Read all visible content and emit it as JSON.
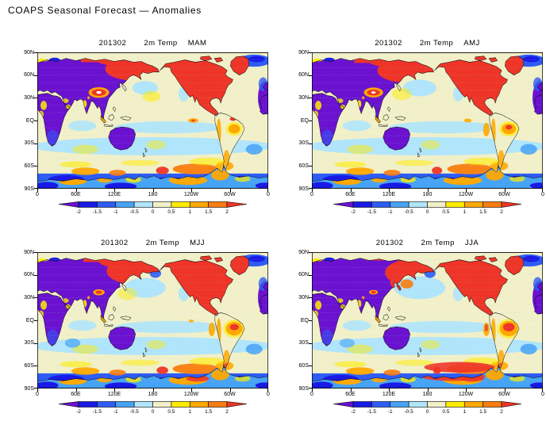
{
  "page": {
    "title": "COAPS Seasonal Forecast — Anomalies"
  },
  "colors": {
    "background": "#ffffff",
    "ocean_base": "#F2F0C8",
    "gridline": "#9FD4EE",
    "coastline": "#0a0a0a",
    "frame": "#000000"
  },
  "chart_data": {
    "type": "heatmap",
    "subtype": "filled-contour global anomaly maps, 2x2 seasonal panels",
    "shared": {
      "init_date": "201302",
      "variable": "2m Temp",
      "units": "degC anomaly",
      "projection": "latlon, Pacific-centered, lon 0E..360E",
      "x_ticks": [
        "0",
        "60E",
        "120E",
        "180",
        "120W",
        "60W",
        "0"
      ],
      "y_ticks": [
        "90N",
        "60N",
        "30N",
        "EQ",
        "30S",
        "60S",
        "90S"
      ],
      "lon_range": [
        0,
        360
      ],
      "lat_range": [
        -90,
        90
      ],
      "grid": "light-blue dotted horizontal latitude lines every 10 deg",
      "colorbar": {
        "tick_labels": [
          "-2",
          "-1.5",
          "-1",
          "-0.5",
          "0",
          "0.5",
          "1",
          "1.5",
          "2"
        ],
        "levels": [
          -2,
          -1.5,
          -1,
          -0.5,
          0,
          0.5,
          1,
          1.5,
          2
        ],
        "below_color": "#6A12D0",
        "segment_colors": [
          "#1A1AE6",
          "#2E5CF5",
          "#47A3F5",
          "#B0E5FB",
          "#F2F0C8",
          "#FFEC00",
          "#FFA800",
          "#F97C0E"
        ],
        "above_color": "#EE3528",
        "arrow_ends": true,
        "position": "below each map, centered"
      }
    },
    "panels": [
      {
        "title_date": "201302",
        "title_var": "2m Temp",
        "season": "MAM",
        "warm_regions": [
          "North America (strong, > +2)",
          "northern and eastern Siberia",
          "central-Asia plateau hotspot (local max, white core)",
          "Antarctic coastal seas (patches > +1.5)"
        ],
        "cold_regions": [
          "Europe and western Russia (< -2)",
          "central and southern Asia (< -2)",
          "northern Africa",
          "Australia (< -2)",
          "subtropical North Atlantic",
          "high-latitude Southern Ocean"
        ],
        "near_zero_regions": [
          "tropical Pacific and Atlantic (0 to +0.5)"
        ]
      },
      {
        "title_date": "201302",
        "title_var": "2m Temp",
        "season": "AMJ",
        "warm_regions": [
          "North America (strong, > +2)",
          "northern and eastern Siberia",
          "central-Asia plateau hotspot",
          "coastal Peru warm patch",
          "Antarctic coastal seas"
        ],
        "cold_regions": [
          "Europe and western Russia (< -2)",
          "central and southern Asia (< -2)",
          "Australia (< -2)",
          "subtropical North Atlantic",
          "mid-latitude North Pacific cool patch",
          "high-latitude Southern Ocean"
        ],
        "near_zero_regions": [
          "tropical oceans (0 to +0.5)"
        ]
      },
      {
        "title_date": "201302",
        "title_var": "2m Temp",
        "season": "MJJ",
        "warm_regions": [
          "North America (strong, > +2)",
          "northeastern Asia / Siberia (band thickens)",
          "central Brazil warm blob (+1.5 to +2)",
          "Antarctic coastal seas"
        ],
        "cold_regions": [
          "Europe and central Asia (< -2)",
          "Australia (< -2)",
          "growing mid-latitude North Pacific cool patch",
          "Bering Sea patch",
          "high-latitude Southern Ocean"
        ],
        "near_zero_regions": [
          "tropical oceans (0 to +0.5)"
        ]
      },
      {
        "title_date": "201302",
        "title_var": "2m Temp",
        "season": "JJA",
        "warm_regions": [
          "North America (strong, > +2)",
          "northeastern Siberia and sea east of Japan",
          "central Brazil strong warm blob (> +2)",
          "red Antarctic coastal band (> +2)"
        ],
        "cold_regions": [
          "Europe and central/southern Asia (< -2, largest extent)",
          "Australia (< -2)",
          "large mid-latitude North Pacific cool pool",
          "high-latitude Southern Ocean"
        ],
        "near_zero_regions": [
          "tropical oceans (0 to +0.5)"
        ]
      }
    ]
  }
}
